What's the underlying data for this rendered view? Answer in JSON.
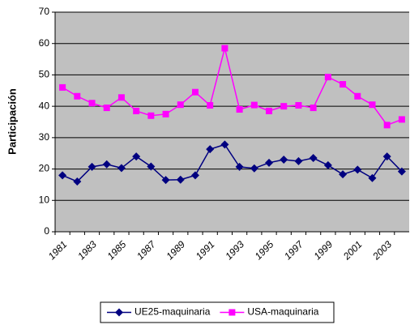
{
  "chart_data": {
    "type": "line",
    "y_label": "Participación",
    "categories": [
      "1981",
      null,
      "1983",
      null,
      "1985",
      null,
      "1987",
      null,
      "1989",
      null,
      "1991",
      null,
      "1993",
      null,
      "1995",
      null,
      "1997",
      null,
      "1999",
      null,
      "2001",
      null,
      "2003",
      null
    ],
    "series": [
      {
        "name": "UE25-maquinaria",
        "color": "#000080",
        "marker": "diamond",
        "values": [
          18,
          16,
          20.7,
          21.5,
          20.3,
          24,
          20.8,
          16.5,
          16.6,
          18,
          26.3,
          27.8,
          20.7,
          20.2,
          22,
          23,
          22.5,
          23.5,
          21.2,
          18.3,
          19.8,
          17.1,
          24,
          19.2
        ]
      },
      {
        "name": "USA-maquinaria",
        "color": "#ff00ff",
        "marker": "square",
        "values": [
          46,
          43.2,
          41,
          39.5,
          42.8,
          38.5,
          37,
          37.5,
          40.5,
          44.5,
          40.3,
          58.5,
          39,
          40.4,
          38.5,
          40,
          40.3,
          39.5,
          49.3,
          47,
          43.2,
          40.5,
          34,
          35.8
        ]
      }
    ],
    "ylim": [
      0,
      70
    ],
    "yticks": [
      0,
      10,
      20,
      30,
      40,
      50,
      60,
      70
    ],
    "grid": true,
    "plot_background": "#c0c0c0",
    "legend": "bottom"
  }
}
